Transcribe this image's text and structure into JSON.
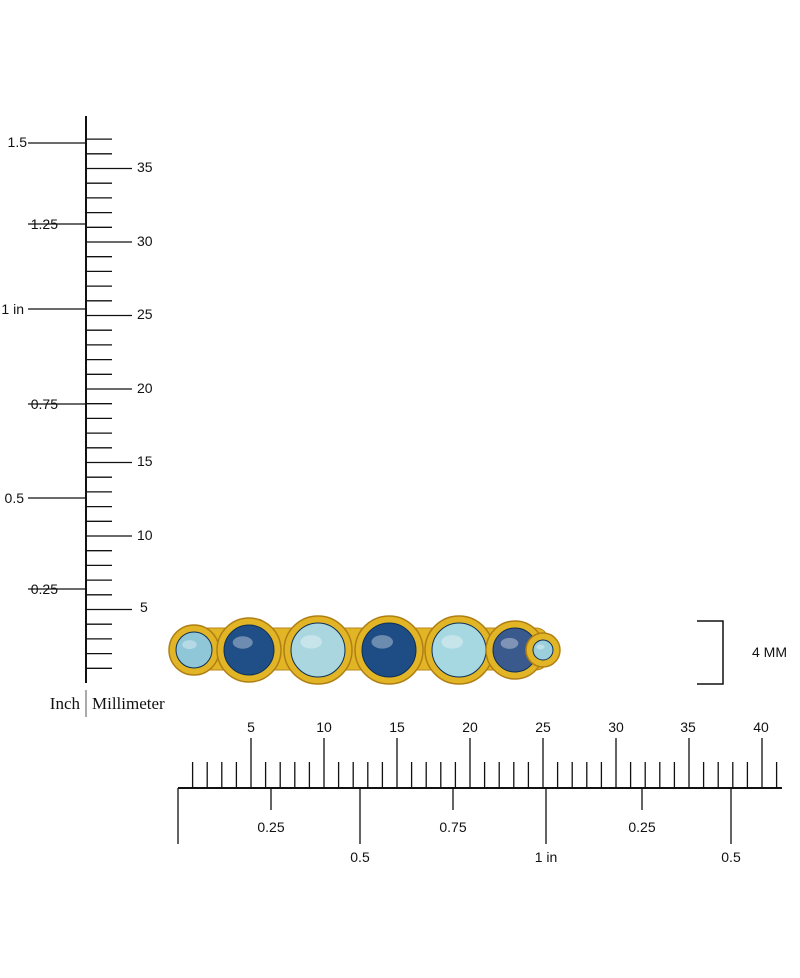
{
  "vertical_ruler": {
    "inch_labels": [
      "1.5",
      "1.25",
      "1 in",
      "0.75",
      "0.5",
      "0.25"
    ],
    "mm_labels": [
      "35",
      "30",
      "25",
      "20",
      "15",
      "10",
      "5"
    ],
    "unit_inch": "Inch",
    "unit_mm": "Millimeter"
  },
  "horizontal_ruler": {
    "mm_labels": [
      "5",
      "10",
      "15",
      "20",
      "25",
      "30",
      "35",
      "40"
    ],
    "inch_quarter_labels": [
      "0.25",
      "0.75",
      "0.25"
    ],
    "inch_half_labels": [
      "0.5",
      "1 in",
      "0.5"
    ]
  },
  "height_marker": {
    "label": "4 MM"
  },
  "product": {
    "name": "gold-bezel-gemstone-band",
    "metal_color": "#e2b526",
    "stones": [
      {
        "tone": "light",
        "color": "#8fc6d8"
      },
      {
        "tone": "dark",
        "color": "#1f4f86"
      },
      {
        "tone": "light",
        "color": "#a9d6df"
      },
      {
        "tone": "dark",
        "color": "#1d4d84"
      },
      {
        "tone": "light",
        "color": "#a6d8e1"
      },
      {
        "tone": "dark",
        "color": "#3a5a8e"
      },
      {
        "tone": "light",
        "color": "#9ccfdc"
      }
    ]
  }
}
